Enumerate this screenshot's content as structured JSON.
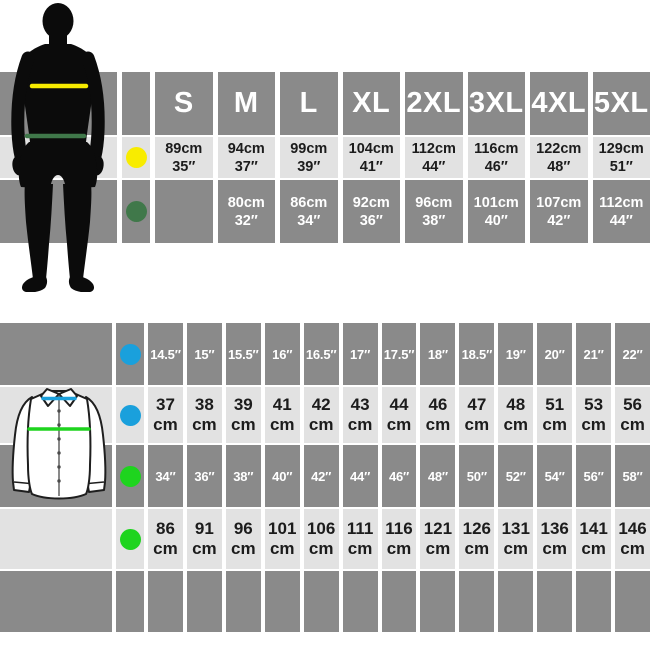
{
  "colors": {
    "band_dark": "#8a8a8a",
    "band_light": "#e2e2e2",
    "silhouette": "#0b0b0b",
    "marker_yellow": "#f8ec00",
    "marker_dark_green": "#40784a",
    "marker_blue": "#1aa0dc",
    "marker_bright_green": "#1ed41e",
    "text_on_dark": "#ffffff",
    "text_on_light": "#1c1c1c"
  },
  "unit_symbols": {
    "in": "″",
    "cm": "cm"
  },
  "chart_data": [
    {
      "type": "table",
      "title": "",
      "columns": [
        "S",
        "M",
        "L",
        "XL",
        "2XL",
        "3XL",
        "4XL",
        "5XL"
      ],
      "rows": [
        {
          "measure": "chest",
          "marker": "yellow-dot",
          "marker_color": "#f8ec00",
          "values_cm": [
            89,
            94,
            99,
            104,
            112,
            116,
            122,
            129
          ],
          "values_in": [
            35,
            37,
            39,
            41,
            44,
            46,
            48,
            51
          ]
        },
        {
          "measure": "waist",
          "marker": "green-dot",
          "marker_color": "#40784a",
          "values_cm": [
            null,
            80,
            86,
            92,
            96,
            101,
            107,
            112
          ],
          "values_in": [
            null,
            32,
            34,
            36,
            38,
            40,
            42,
            44
          ]
        }
      ]
    },
    {
      "type": "table",
      "title": "",
      "rows": [
        {
          "measure": "collar",
          "marker": "blue-dot",
          "marker_color": "#1aa0dc",
          "unit": "in",
          "values": [
            "14.5",
            "15",
            "15.5",
            "16",
            "16.5",
            "17",
            "17.5",
            "18",
            "18.5",
            "19",
            "20",
            "21",
            "22"
          ]
        },
        {
          "measure": "collar",
          "marker": "blue-dot",
          "marker_color": "#1aa0dc",
          "unit": "cm",
          "values": [
            37,
            38,
            39,
            41,
            42,
            43,
            44,
            46,
            47,
            48,
            51,
            53,
            56
          ]
        },
        {
          "measure": "chest",
          "marker": "green-dot",
          "marker_color": "#1ed41e",
          "unit": "in",
          "values": [
            34,
            36,
            38,
            40,
            42,
            44,
            46,
            48,
            50,
            52,
            54,
            56,
            58
          ]
        },
        {
          "measure": "chest",
          "marker": "green-dot",
          "marker_color": "#1ed41e",
          "unit": "cm",
          "values": [
            86,
            91,
            96,
            101,
            106,
            111,
            116,
            121,
            126,
            131,
            136,
            141,
            146
          ]
        }
      ]
    }
  ]
}
